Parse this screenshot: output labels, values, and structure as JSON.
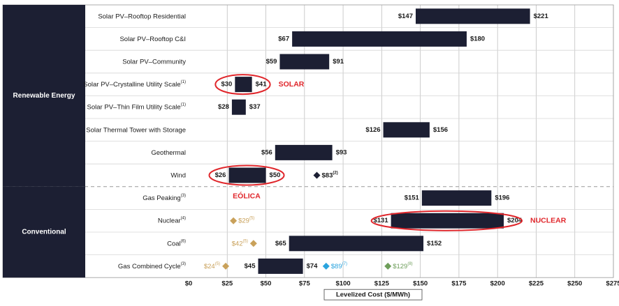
{
  "chart_data": {
    "type": "bar",
    "subtype": "floating-range-horizontal",
    "xlabel": "Levelized Cost ($/MWh)",
    "xlim": [
      0,
      275
    ],
    "xticks": [
      0,
      25,
      50,
      75,
      100,
      125,
      150,
      175,
      200,
      225,
      250,
      275
    ],
    "xtick_labels": [
      "$0",
      "$25",
      "$50",
      "$75",
      "$100",
      "$125",
      "$150",
      "$175",
      "$200",
      "$225",
      "$250",
      "$275"
    ],
    "grid": true,
    "groups": [
      {
        "label": "Renewable Energy",
        "first_row": 0,
        "last_row": 7
      },
      {
        "label": "Conventional",
        "first_row": 8,
        "last_row": 11
      }
    ],
    "rows": [
      {
        "category": "Solar PV–Rooftop Residential",
        "sup": "",
        "low": 147,
        "high": 221,
        "low_label": "$147",
        "high_label": "$221",
        "markers": []
      },
      {
        "category": "Solar PV–Rooftop C&I",
        "sup": "",
        "low": 67,
        "high": 180,
        "low_label": "$67",
        "high_label": "$180",
        "markers": []
      },
      {
        "category": "Solar PV–Community",
        "sup": "",
        "low": 59,
        "high": 91,
        "low_label": "$59",
        "high_label": "$91",
        "markers": []
      },
      {
        "category": "Solar PV–Crystalline Utility Scale",
        "sup": "(1)",
        "low": 30,
        "high": 41,
        "low_label": "$30",
        "high_label": "$41",
        "markers": []
      },
      {
        "category": "Solar PV–Thin Film Utility Scale",
        "sup": "(1)",
        "low": 28,
        "high": 37,
        "low_label": "$28",
        "high_label": "$37",
        "markers": []
      },
      {
        "category": "Solar Thermal Tower with Storage",
        "sup": "",
        "low": 126,
        "high": 156,
        "low_label": "$126",
        "high_label": "$156",
        "markers": []
      },
      {
        "category": "Geothermal",
        "sup": "",
        "low": 56,
        "high": 93,
        "low_label": "$56",
        "high_label": "$93",
        "markers": []
      },
      {
        "category": "Wind",
        "sup": "",
        "low": 26,
        "high": 50,
        "low_label": "$26",
        "high_label": "$50",
        "markers": [
          {
            "value": 83,
            "label": "$83",
            "sup": "(2)",
            "color": "#1c1f33",
            "side": "right"
          }
        ]
      },
      {
        "category": "Gas Peaking",
        "sup": "(3)",
        "low": 151,
        "high": 196,
        "low_label": "$151",
        "high_label": "$196",
        "markers": []
      },
      {
        "category": "Nuclear",
        "sup": "(4)",
        "low": 131,
        "high": 204,
        "low_label": "$131",
        "high_label": "$204",
        "markers": [
          {
            "value": 29,
            "label": "$29",
            "sup": "(5)",
            "color": "#c9a15a",
            "side": "right"
          }
        ]
      },
      {
        "category": "Coal",
        "sup": "(6)",
        "low": 65,
        "high": 152,
        "low_label": "$65",
        "high_label": "$152",
        "markers": [
          {
            "value": 42,
            "label": "$42",
            "sup": "(5)",
            "color": "#c9a15a",
            "side": "left"
          }
        ]
      },
      {
        "category": "Gas Combined Cycle",
        "sup": "(3)",
        "low": 45,
        "high": 74,
        "low_label": "$45",
        "high_label": "$74",
        "markers": [
          {
            "value": 24,
            "label": "$24",
            "sup": "(5)",
            "color": "#c9a15a",
            "side": "left"
          },
          {
            "value": 89,
            "label": "$89",
            "sup": "(7)",
            "color": "#2aa4de",
            "side": "right"
          },
          {
            "value": 129,
            "label": "$129",
            "sup": "(8)",
            "color": "#6e9e5a",
            "side": "right"
          }
        ]
      }
    ],
    "annotations": [
      {
        "text": "SOLAR",
        "row": 3
      },
      {
        "text": "EÓLICA",
        "row": 7
      },
      {
        "text": "NUCLEAR",
        "row": 9
      }
    ],
    "colors": {
      "bar": "#1c1f33",
      "group_panel": "#1c1f33",
      "annotation": "#e0262b",
      "grid": "#bfbfbf"
    }
  }
}
